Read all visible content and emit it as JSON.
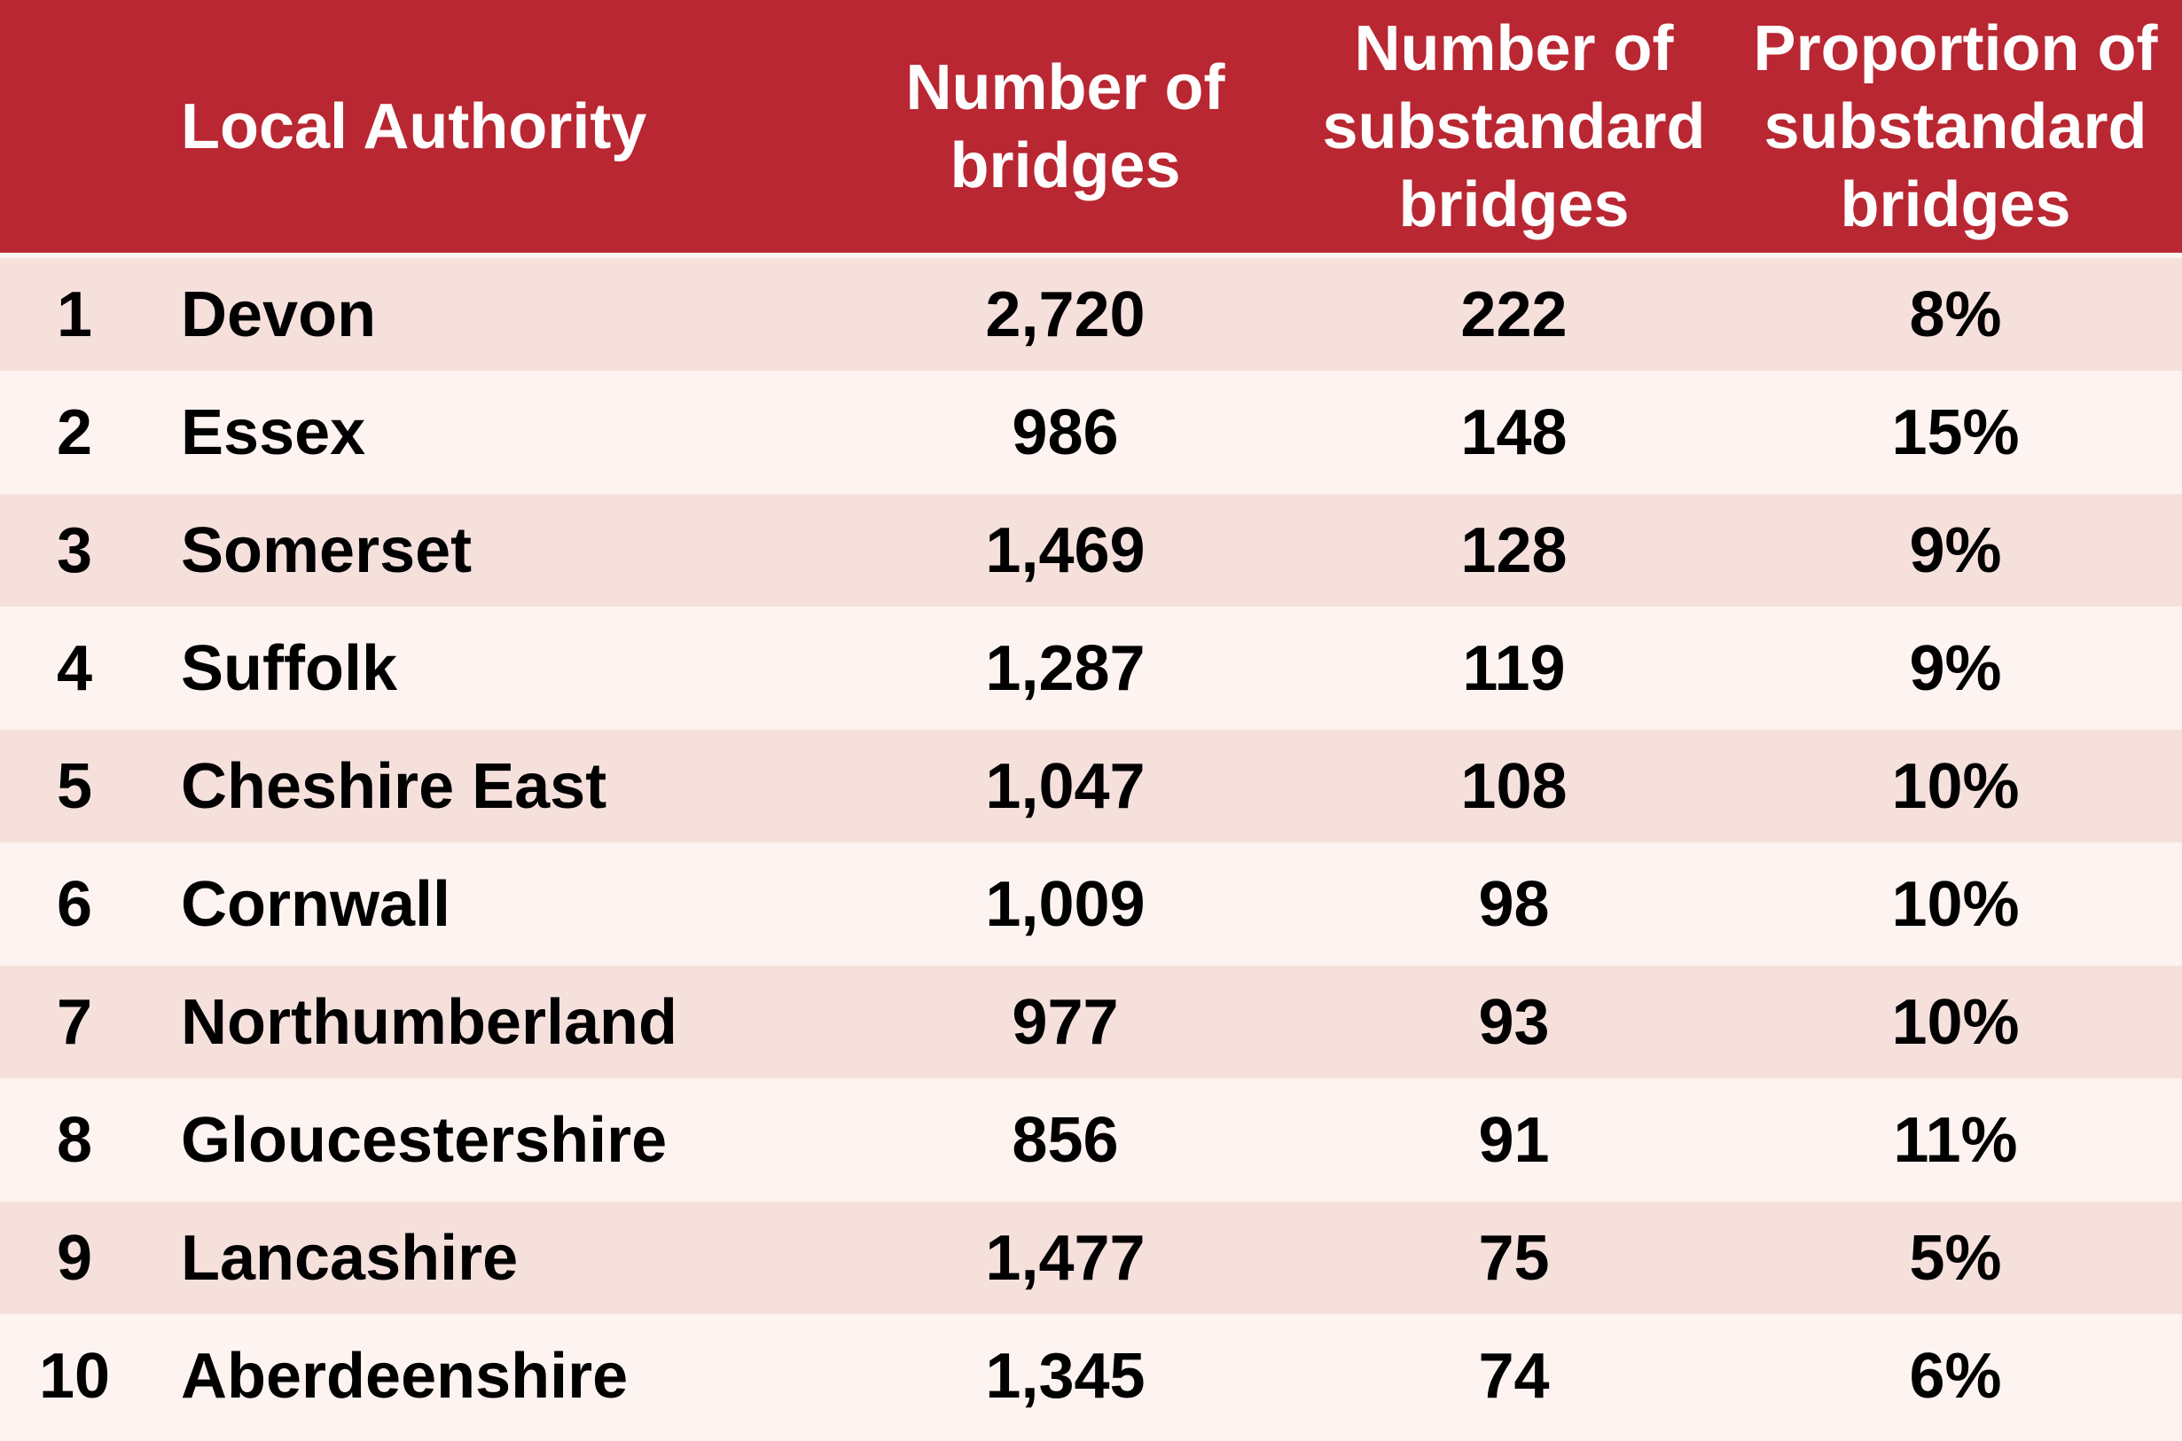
{
  "header": {
    "rank": "",
    "local_authority": "Local Authority",
    "number_of_bridges": "Number of bridges",
    "number_of_substandard_bridges": "Number of substandard bridges",
    "proportion_of_substandard_bridges": "Proportion of substandard bridges"
  },
  "rows": [
    {
      "rank": "1",
      "name": "Devon",
      "bridges": "2,720",
      "substandard": "222",
      "proportion": "8%"
    },
    {
      "rank": "2",
      "name": "Essex",
      "bridges": "986",
      "substandard": "148",
      "proportion": "15%"
    },
    {
      "rank": "3",
      "name": "Somerset",
      "bridges": "1,469",
      "substandard": "128",
      "proportion": "9%"
    },
    {
      "rank": "4",
      "name": "Suffolk",
      "bridges": "1,287",
      "substandard": "119",
      "proportion": "9%"
    },
    {
      "rank": "5",
      "name": "Cheshire East",
      "bridges": "1,047",
      "substandard": "108",
      "proportion": "10%"
    },
    {
      "rank": "6",
      "name": "Cornwall",
      "bridges": "1,009",
      "substandard": "98",
      "proportion": "10%"
    },
    {
      "rank": "7",
      "name": "Northumberland",
      "bridges": "977",
      "substandard": "93",
      "proportion": "10%"
    },
    {
      "rank": "8",
      "name": "Gloucestershire",
      "bridges": "856",
      "substandard": "91",
      "proportion": "11%"
    },
    {
      "rank": "9",
      "name": "Lancashire",
      "bridges": "1,477",
      "substandard": "75",
      "proportion": "5%"
    },
    {
      "rank": "10",
      "name": "Aberdeenshire",
      "bridges": "1,345",
      "substandard": "74",
      "proportion": "6%"
    }
  ],
  "colors": {
    "header_bg": "#b92732",
    "header_text": "#ffffff",
    "row_odd_bg": "#f5e0dc",
    "row_even_bg": "#fdf3f1",
    "body_text": "#000000"
  }
}
